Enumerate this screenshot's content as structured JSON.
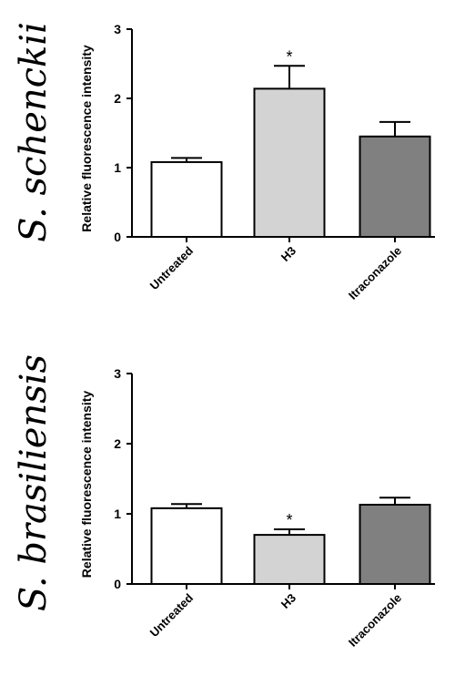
{
  "chart_data": [
    {
      "type": "bar",
      "title": "S. schenckii",
      "ylabel": "Relative fluorescence intensity",
      "xlabel": "",
      "categories": [
        "Untreated",
        "H3",
        "Itraconazole"
      ],
      "values": [
        1.08,
        2.14,
        1.45
      ],
      "errors": [
        0.06,
        0.33,
        0.21
      ],
      "significance": [
        "",
        "*",
        ""
      ],
      "bar_colors": [
        "#ffffff",
        "#d3d3d3",
        "#808080"
      ],
      "ylim": [
        0,
        3
      ],
      "yticks": [
        "0",
        "1",
        "2",
        "3"
      ],
      "grid": false
    },
    {
      "type": "bar",
      "title": "S. brasiliensis",
      "ylabel": "Relative fluorescence intensity",
      "xlabel": "",
      "categories": [
        "Untreated",
        "H3",
        "Itraconazole"
      ],
      "values": [
        1.08,
        0.7,
        1.13
      ],
      "errors": [
        0.06,
        0.08,
        0.1
      ],
      "significance": [
        "",
        "*",
        ""
      ],
      "bar_colors": [
        "#ffffff",
        "#d3d3d3",
        "#808080"
      ],
      "ylim": [
        0,
        3
      ],
      "yticks": [
        "0",
        "1",
        "2",
        "3"
      ],
      "grid": false
    }
  ]
}
